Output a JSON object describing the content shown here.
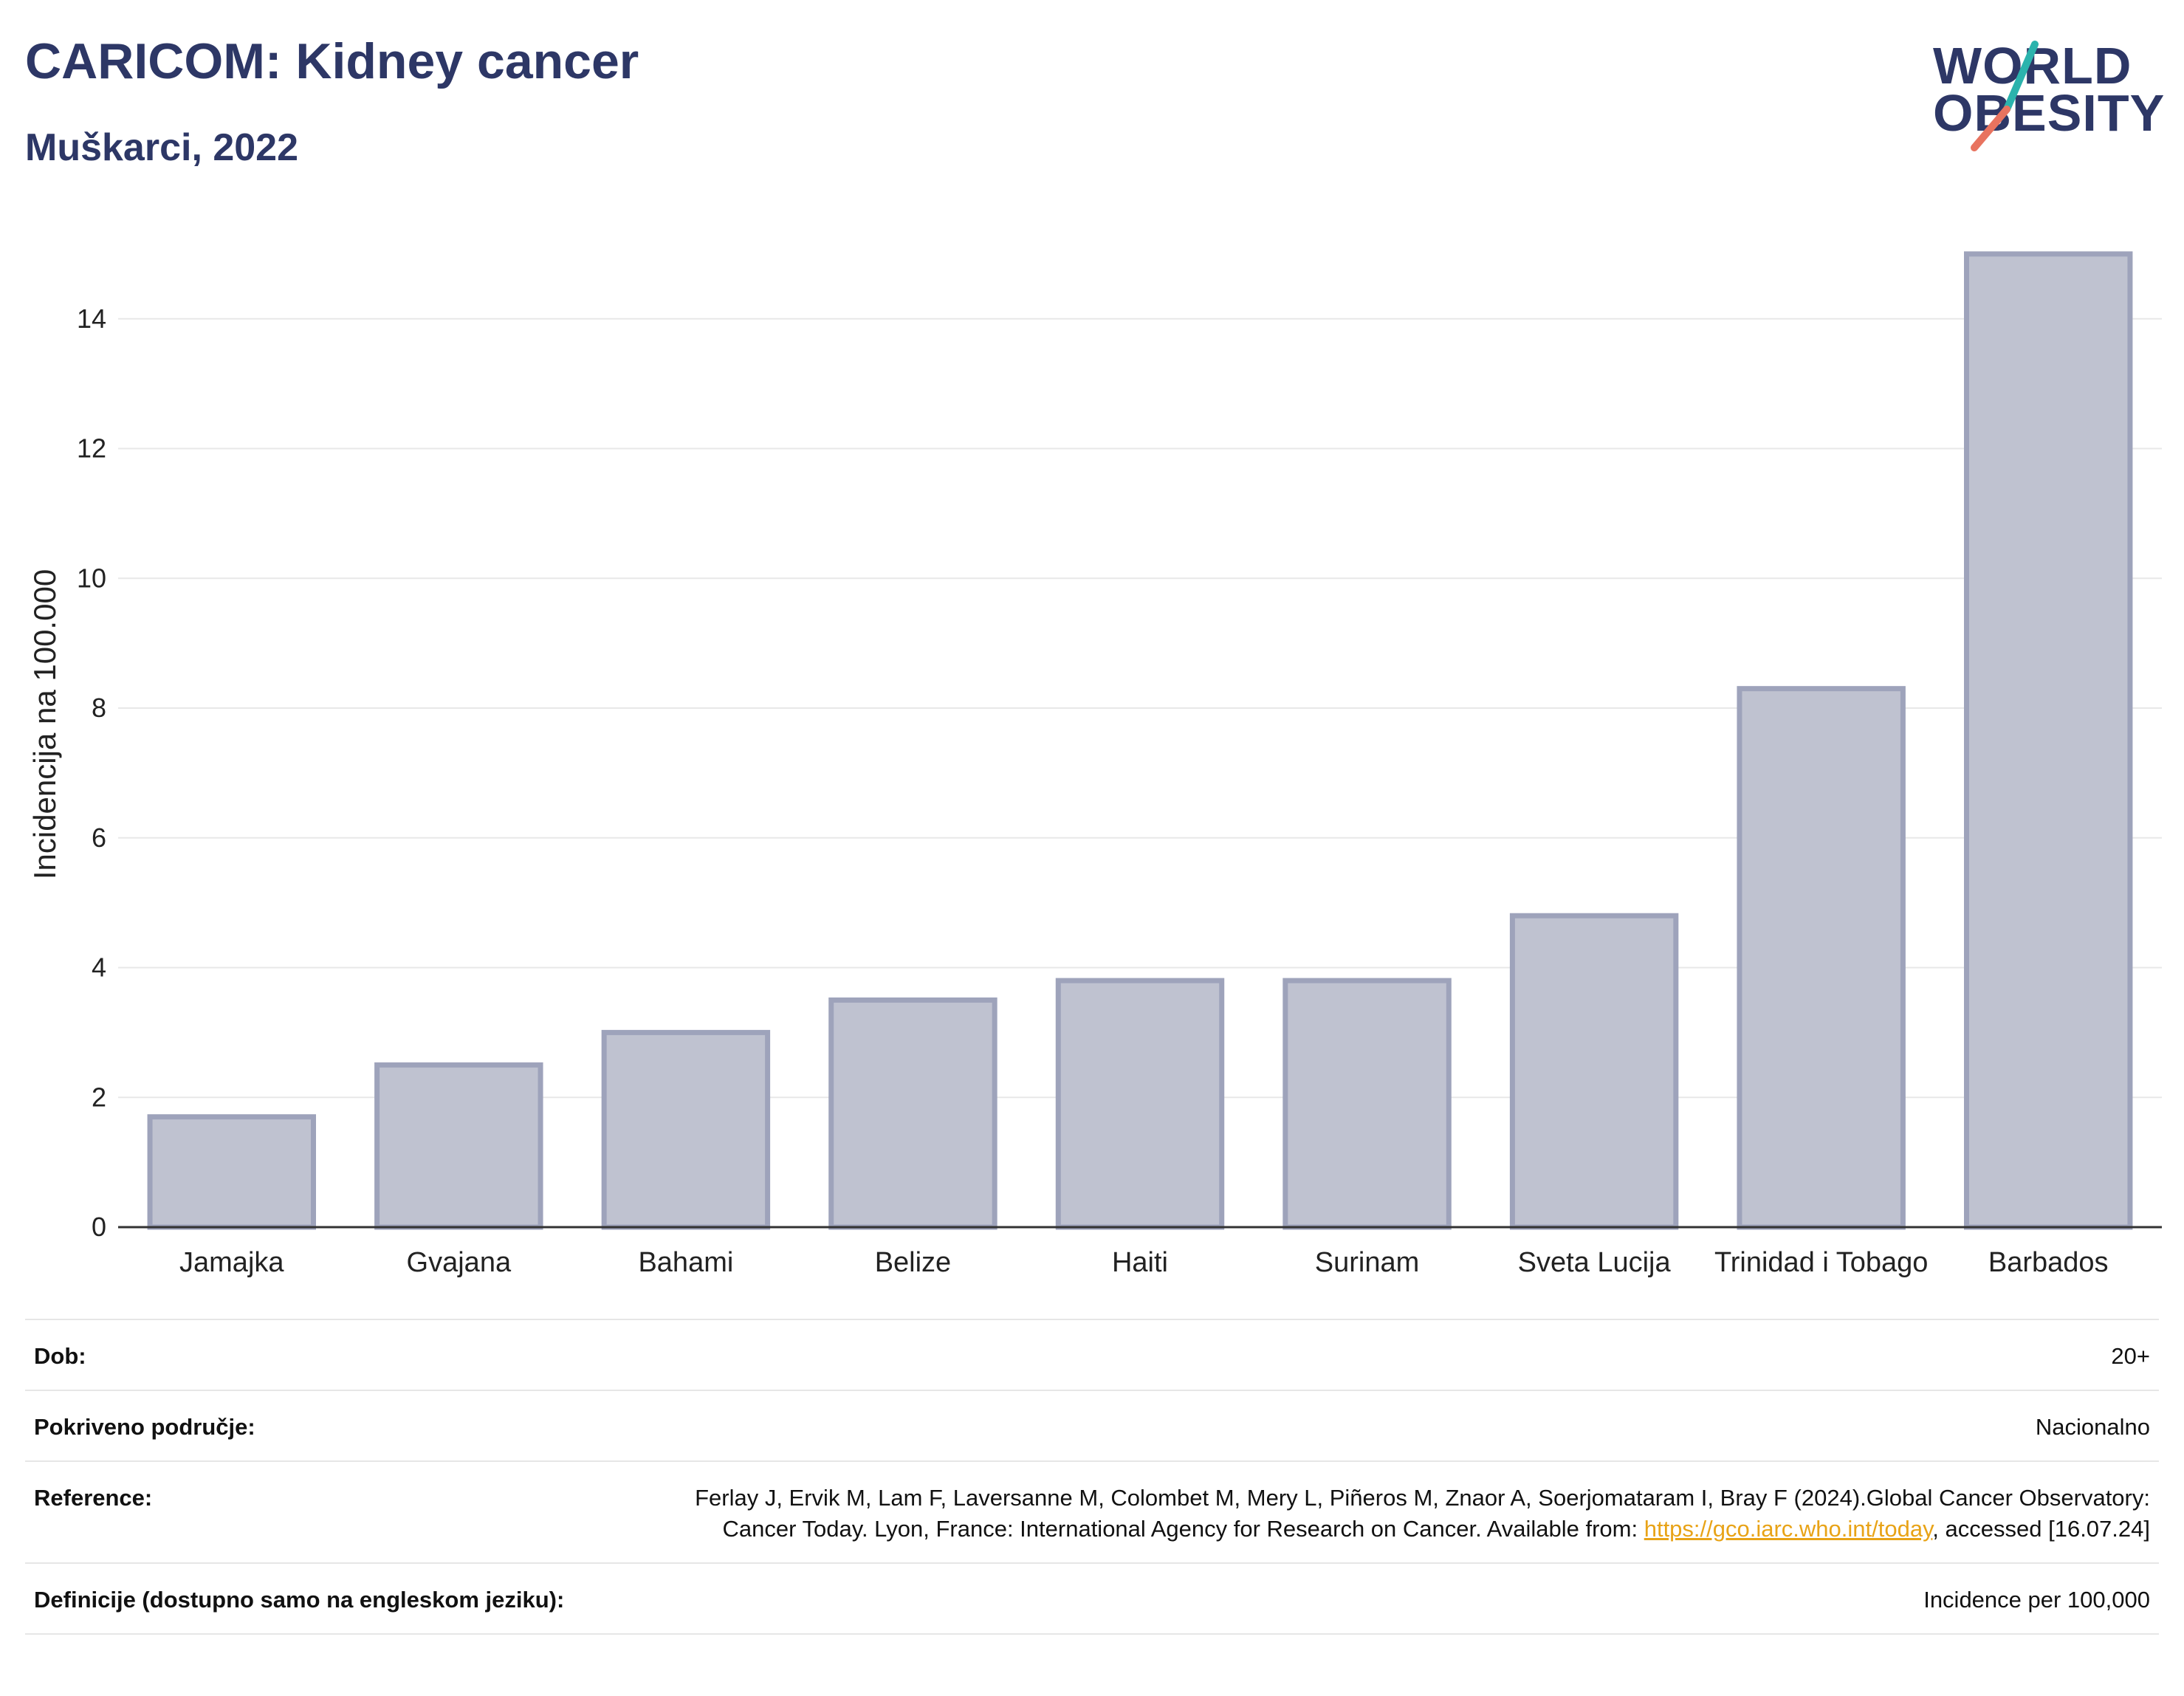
{
  "header": {
    "title": "CARICOM: Kidney cancer",
    "subtitle": "Muškarci, 2022"
  },
  "logo": {
    "line1": "WORLD",
    "line2": "OBESITY",
    "accent_teal": "#2bb3ad",
    "accent_red": "#e8735f"
  },
  "colors": {
    "bar_fill": "#bfc2d0",
    "bar_stroke": "#9ea3bb",
    "axis": "#333333",
    "grid": "#e8e8e8",
    "title": "#2d3766"
  },
  "chart_data": {
    "type": "bar",
    "ylabel": "Incidencija na 100.000",
    "xlabel": "",
    "ylim": [
      0,
      15.5
    ],
    "yticks": [
      0,
      2,
      4,
      6,
      8,
      10,
      12,
      14
    ],
    "grid": true,
    "categories": [
      "Jamajka",
      "Gvajana",
      "Bahami",
      "Belize",
      "Haiti",
      "Surinam",
      "Sveta Lucija",
      "Trinidad i Tobago",
      "Barbados"
    ],
    "values": [
      1.7,
      2.5,
      3.0,
      3.5,
      3.8,
      3.8,
      4.8,
      8.3,
      15.0
    ]
  },
  "info": {
    "rows": [
      {
        "label": "Dob:",
        "value": "20+"
      },
      {
        "label": "Pokriveno područje:",
        "value": "Nacionalno"
      },
      {
        "label": "Reference:",
        "value_pre": "Ferlay J, Ervik M, Lam F, Laversanne M, Colombet M, Mery L, Piñeros M, Znaor A, Soerjomataram I, Bray F (2024).Global Cancer Observatory: Cancer Today. Lyon, France: International Agency for Research on Cancer. Available from: ",
        "link": "https://gco.iarc.who.int/today",
        "value_post": ", accessed [16.07.24]"
      },
      {
        "label": "Definicije (dostupno samo na engleskom jeziku):",
        "value": "Incidence per 100,000"
      }
    ]
  }
}
